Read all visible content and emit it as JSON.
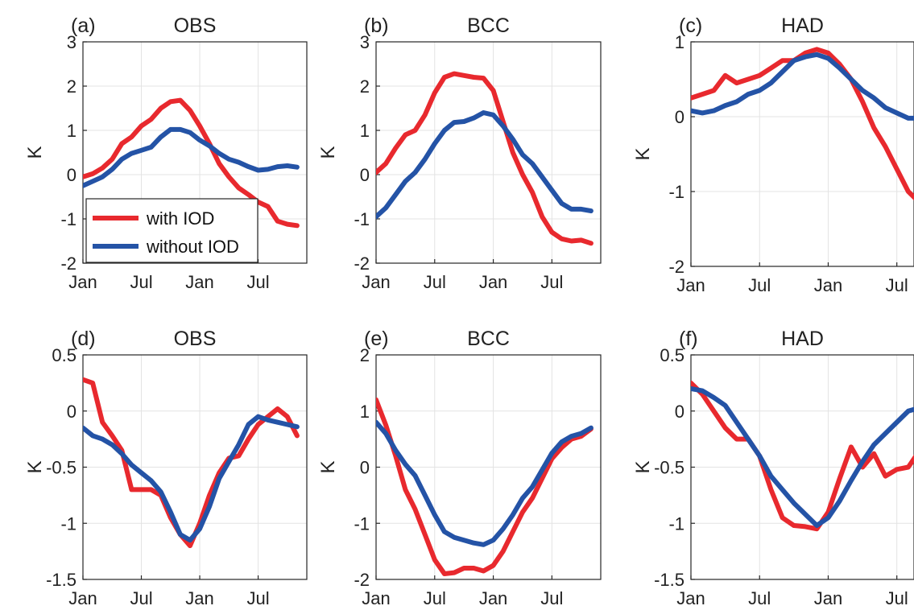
{
  "colors": {
    "with_iod": "#e8292e",
    "without_iod": "#2453a6"
  },
  "legend": {
    "with_label": "with IOD",
    "without_label": "without IOD",
    "panel": "a"
  },
  "chart_data": [
    {
      "id": "a",
      "letter": "(a)",
      "title": "OBS",
      "type": "line",
      "ylabel": "K",
      "ylim": [
        -2,
        3
      ],
      "yticks": [
        -2,
        -1,
        0,
        1,
        2,
        3
      ],
      "ytick_labels": [
        "-2",
        "-1",
        "0",
        "1",
        "2",
        "3"
      ],
      "xticks": [
        0,
        6,
        12,
        18
      ],
      "xtick_labels": [
        "Jan",
        "Jul",
        "Jan",
        "Jul"
      ],
      "xlim": [
        0,
        23
      ],
      "series": [
        {
          "name": "with IOD",
          "color_key": "with_iod",
          "values": [
            -0.05,
            0.02,
            0.15,
            0.35,
            0.7,
            0.85,
            1.1,
            1.25,
            1.5,
            1.65,
            1.68,
            1.45,
            1.1,
            0.7,
            0.25,
            -0.05,
            -0.3,
            -0.45,
            -0.62,
            -0.72,
            -1.05,
            -1.12,
            -1.15
          ]
        },
        {
          "name": "without IOD",
          "color_key": "without_iod",
          "values": [
            -0.25,
            -0.15,
            -0.05,
            0.12,
            0.35,
            0.48,
            0.55,
            0.62,
            0.85,
            1.02,
            1.02,
            0.95,
            0.78,
            0.65,
            0.48,
            0.35,
            0.28,
            0.18,
            0.1,
            0.12,
            0.18,
            0.2,
            0.17
          ]
        }
      ]
    },
    {
      "id": "b",
      "letter": "(b)",
      "title": "BCC",
      "type": "line",
      "ylabel": "K",
      "ylim": [
        -2,
        3
      ],
      "yticks": [
        -2,
        -1,
        0,
        1,
        2,
        3
      ],
      "ytick_labels": [
        "-2",
        "-1",
        "0",
        "1",
        "2",
        "3"
      ],
      "xticks": [
        0,
        6,
        12,
        18
      ],
      "xtick_labels": [
        "Jan",
        "Jul",
        "Jan",
        "Jul"
      ],
      "xlim": [
        0,
        23
      ],
      "series": [
        {
          "name": "with IOD",
          "color_key": "with_iod",
          "values": [
            0.05,
            0.25,
            0.6,
            0.9,
            1.0,
            1.35,
            1.85,
            2.2,
            2.28,
            2.24,
            2.2,
            2.18,
            1.9,
            1.2,
            0.5,
            0.0,
            -0.4,
            -0.95,
            -1.3,
            -1.45,
            -1.5,
            -1.48,
            -1.55
          ]
        },
        {
          "name": "without IOD",
          "color_key": "without_iod",
          "values": [
            -0.95,
            -0.75,
            -0.45,
            -0.15,
            0.05,
            0.35,
            0.7,
            1.0,
            1.18,
            1.2,
            1.28,
            1.4,
            1.35,
            1.1,
            0.8,
            0.45,
            0.25,
            -0.05,
            -0.35,
            -0.65,
            -0.78,
            -0.78,
            -0.82
          ]
        }
      ]
    },
    {
      "id": "c",
      "letter": "(c)",
      "title": "HAD",
      "type": "line",
      "ylabel": "K",
      "ylim": [
        -2,
        1
      ],
      "yticks": [
        -2,
        -1,
        0,
        1
      ],
      "ytick_labels": [
        "-2",
        "-1",
        "0",
        "1"
      ],
      "xticks": [
        0,
        6,
        12,
        18
      ],
      "xtick_labels": [
        "Jan",
        "Jul",
        "Jan",
        "Jul"
      ],
      "xlim": [
        0,
        19.5
      ],
      "series": [
        {
          "name": "with IOD",
          "color_key": "with_iod",
          "values": [
            0.25,
            0.3,
            0.35,
            0.55,
            0.45,
            0.5,
            0.55,
            0.65,
            0.75,
            0.75,
            0.85,
            0.9,
            0.85,
            0.7,
            0.5,
            0.2,
            -0.15,
            -0.4,
            -0.7,
            -1.0,
            -1.15,
            -1.12
          ]
        },
        {
          "name": "without IOD",
          "color_key": "without_iod",
          "values": [
            0.08,
            0.05,
            0.08,
            0.15,
            0.2,
            0.3,
            0.35,
            0.45,
            0.6,
            0.75,
            0.8,
            0.83,
            0.78,
            0.65,
            0.5,
            0.35,
            0.25,
            0.12,
            0.05,
            -0.02,
            -0.02,
            0.0
          ]
        }
      ]
    },
    {
      "id": "d",
      "letter": "(d)",
      "title": "OBS",
      "type": "line",
      "ylabel": "K",
      "ylim": [
        -1.5,
        0.5
      ],
      "yticks": [
        -1.5,
        -1,
        -0.5,
        0,
        0.5
      ],
      "ytick_labels": [
        "-1.5",
        "-1",
        "-0.5",
        "0",
        "0.5"
      ],
      "xticks": [
        0,
        6,
        12,
        18
      ],
      "xtick_labels": [
        "Jan",
        "Jul",
        "Jan",
        "Jul"
      ],
      "xlim": [
        0,
        23
      ],
      "series": [
        {
          "name": "with IOD",
          "color_key": "with_iod",
          "values": [
            0.28,
            0.25,
            -0.1,
            -0.22,
            -0.35,
            -0.7,
            -0.7,
            -0.7,
            -0.75,
            -0.95,
            -1.1,
            -1.2,
            -1.0,
            -0.75,
            -0.55,
            -0.42,
            -0.4,
            -0.25,
            -0.12,
            -0.05,
            0.02,
            -0.05,
            -0.22
          ]
        },
        {
          "name": "without IOD",
          "color_key": "without_iod",
          "values": [
            -0.15,
            -0.22,
            -0.25,
            -0.3,
            -0.38,
            -0.48,
            -0.55,
            -0.62,
            -0.72,
            -0.9,
            -1.1,
            -1.15,
            -1.05,
            -0.85,
            -0.6,
            -0.45,
            -0.3,
            -0.12,
            -0.05,
            -0.08,
            -0.1,
            -0.12,
            -0.14
          ]
        }
      ]
    },
    {
      "id": "e",
      "letter": "(e)",
      "title": "BCC",
      "type": "line",
      "ylabel": "K",
      "ylim": [
        -2,
        2
      ],
      "yticks": [
        -2,
        -1,
        0,
        1,
        2
      ],
      "ytick_labels": [
        "-2",
        "-1",
        "0",
        "1",
        "2"
      ],
      "xticks": [
        0,
        6,
        12,
        18
      ],
      "xtick_labels": [
        "Jan",
        "Jul",
        "Jan",
        "Jul"
      ],
      "xlim": [
        0,
        23
      ],
      "series": [
        {
          "name": "with IOD",
          "color_key": "with_iod",
          "values": [
            1.2,
            0.75,
            0.2,
            -0.4,
            -0.75,
            -1.2,
            -1.65,
            -1.9,
            -1.88,
            -1.8,
            -1.8,
            -1.85,
            -1.75,
            -1.5,
            -1.15,
            -0.8,
            -0.55,
            -0.2,
            0.15,
            0.35,
            0.5,
            0.55,
            0.68
          ]
        },
        {
          "name": "without IOD",
          "color_key": "without_iod",
          "values": [
            0.8,
            0.6,
            0.3,
            0.05,
            -0.15,
            -0.5,
            -0.85,
            -1.15,
            -1.25,
            -1.3,
            -1.35,
            -1.38,
            -1.3,
            -1.1,
            -0.85,
            -0.55,
            -0.35,
            -0.05,
            0.25,
            0.45,
            0.55,
            0.6,
            0.7
          ]
        }
      ]
    },
    {
      "id": "f",
      "letter": "(f)",
      "title": "HAD",
      "type": "line",
      "ylabel": "K",
      "ylim": [
        -1.5,
        0.5
      ],
      "yticks": [
        -1.5,
        -1,
        -0.5,
        0,
        0.5
      ],
      "ytick_labels": [
        "-1.5",
        "-1",
        "-0.5",
        "0",
        "0.5"
      ],
      "xticks": [
        0,
        6,
        12,
        18
      ],
      "xtick_labels": [
        "Jan",
        "Jul",
        "Jan",
        "Jul"
      ],
      "xlim": [
        0,
        19.5
      ],
      "series": [
        {
          "name": "with IOD",
          "color_key": "with_iod",
          "values": [
            0.25,
            0.15,
            0.0,
            -0.15,
            -0.25,
            -0.25,
            -0.4,
            -0.7,
            -0.95,
            -1.02,
            -1.03,
            -1.05,
            -0.9,
            -0.6,
            -0.32,
            -0.5,
            -0.38,
            -0.58,
            -0.52,
            -0.5,
            -0.35,
            -0.3,
            -0.48
          ]
        },
        {
          "name": "without IOD",
          "color_key": "without_iod",
          "values": [
            0.2,
            0.18,
            0.12,
            0.05,
            -0.1,
            -0.25,
            -0.4,
            -0.58,
            -0.7,
            -0.82,
            -0.92,
            -1.02,
            -0.95,
            -0.8,
            -0.62,
            -0.45,
            -0.3,
            -0.2,
            -0.1,
            0.0,
            0.03,
            0.02
          ]
        }
      ]
    }
  ]
}
